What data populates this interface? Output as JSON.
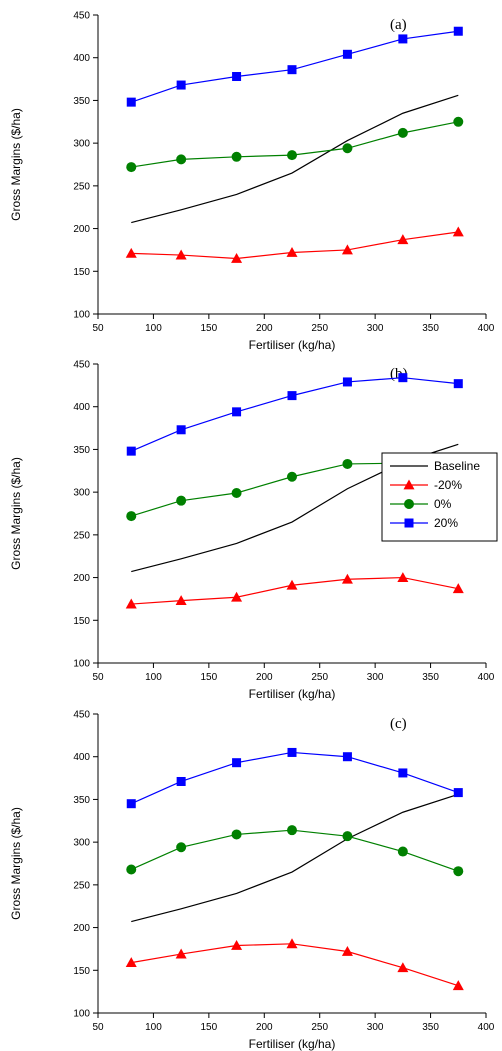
{
  "chart_data": [
    {
      "type": "line",
      "panel_label": "(a)",
      "xlabel": "Fertiliser (kg/ha)",
      "ylabel": "Gross Margins ($/ha)",
      "xlim": [
        50,
        400
      ],
      "ylim": [
        100,
        450
      ],
      "xticks": [
        50,
        100,
        150,
        200,
        250,
        300,
        350,
        400
      ],
      "yticks": [
        100,
        150,
        200,
        250,
        300,
        350,
        400,
        450
      ],
      "x": [
        80,
        125,
        175,
        225,
        275,
        325,
        375
      ],
      "series": [
        {
          "name": "Baseline",
          "color": "#000000",
          "marker": "none",
          "values": [
            207,
            222,
            240,
            265,
            303,
            335,
            356
          ]
        },
        {
          "name": "-20%",
          "color": "#ff0000",
          "marker": "triangle",
          "values": [
            171,
            169,
            165,
            172,
            175,
            187,
            196
          ]
        },
        {
          "name": "0%",
          "color": "#008000",
          "marker": "circle",
          "values": [
            272,
            281,
            284,
            286,
            294,
            312,
            325
          ]
        },
        {
          "name": "20%",
          "color": "#0000ff",
          "marker": "square",
          "values": [
            348,
            368,
            378,
            386,
            404,
            422,
            431
          ]
        }
      ],
      "legend": false
    },
    {
      "type": "line",
      "panel_label": "(b)",
      "xlabel": "Fertiliser (kg/ha)",
      "ylabel": "Gross Margins ($/ha)",
      "xlim": [
        50,
        400
      ],
      "ylim": [
        100,
        450
      ],
      "xticks": [
        50,
        100,
        150,
        200,
        250,
        300,
        350,
        400
      ],
      "yticks": [
        100,
        150,
        200,
        250,
        300,
        350,
        400,
        450
      ],
      "x": [
        80,
        125,
        175,
        225,
        275,
        325,
        375
      ],
      "series": [
        {
          "name": "Baseline",
          "color": "#000000",
          "marker": "none",
          "values": [
            207,
            222,
            240,
            265,
            304,
            335,
            356
          ]
        },
        {
          "name": "-20%",
          "color": "#ff0000",
          "marker": "triangle",
          "values": [
            169,
            173,
            177,
            191,
            198,
            200,
            187
          ]
        },
        {
          "name": "0%",
          "color": "#008000",
          "marker": "circle",
          "values": [
            272,
            290,
            299,
            318,
            333,
            334,
            325
          ]
        },
        {
          "name": "20%",
          "color": "#0000ff",
          "marker": "square",
          "values": [
            348,
            373,
            394,
            413,
            429,
            434,
            427
          ]
        }
      ],
      "legend": true,
      "legend_position": "right"
    },
    {
      "type": "line",
      "panel_label": "(c)",
      "xlabel": "Fertiliser (kg/ha)",
      "ylabel": "Gross Margins ($/ha)",
      "xlim": [
        50,
        400
      ],
      "ylim": [
        100,
        450
      ],
      "xticks": [
        50,
        100,
        150,
        200,
        250,
        300,
        350,
        400
      ],
      "yticks": [
        100,
        150,
        200,
        250,
        300,
        350,
        400,
        450
      ],
      "x": [
        80,
        125,
        175,
        225,
        275,
        325,
        375
      ],
      "series": [
        {
          "name": "Baseline",
          "color": "#000000",
          "marker": "none",
          "values": [
            207,
            222,
            240,
            265,
            304,
            335,
            356
          ]
        },
        {
          "name": "-20%",
          "color": "#ff0000",
          "marker": "triangle",
          "values": [
            159,
            169,
            179,
            181,
            172,
            153,
            132
          ]
        },
        {
          "name": "0%",
          "color": "#008000",
          "marker": "circle",
          "values": [
            268,
            294,
            309,
            314,
            307,
            289,
            266
          ]
        },
        {
          "name": "20%",
          "color": "#0000ff",
          "marker": "square",
          "values": [
            345,
            371,
            393,
            405,
            400,
            381,
            358
          ]
        }
      ],
      "legend": false
    }
  ]
}
